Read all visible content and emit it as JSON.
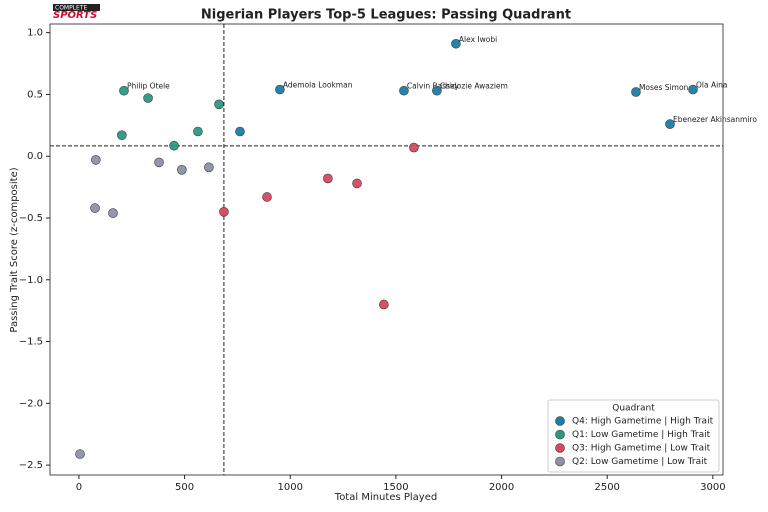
{
  "chart_data": {
    "type": "scatter",
    "title": "Nigerian Players Top-5 Leagues: Passing Quadrant",
    "logo_top": "COMPLETE",
    "logo": "SPORTS",
    "x_label": "Total Minutes Played",
    "y_label": "Passing Trait Score (z-composite)",
    "xlim": [
      -137,
      3048
    ],
    "ylim": [
      -2.58,
      1.07
    ],
    "xticks": [
      0,
      500,
      1000,
      1500,
      2000,
      2500,
      3000
    ],
    "yticks": [
      {
        "value": 1,
        "label": "1.0"
      },
      0.5,
      {
        "value": 0,
        "label": "0.0"
      },
      {
        "value": -0.5,
        "label": "−0.5"
      },
      {
        "value": -1,
        "label": "−1.0"
      },
      {
        "value": -1.5,
        "label": "−1.5"
      },
      {
        "value": -2,
        "label": "−2.0"
      },
      {
        "value": -2.5,
        "label": "−2.5"
      }
    ],
    "vline": 686,
    "hline": 0.084,
    "legend_title": "Quadrant",
    "legend": "lower right",
    "grid": false,
    "series": [
      {
        "name": "Q4: High Gametime | High Trait",
        "color": "#1b7ea6",
        "x": [
          1784,
          951,
          1538,
          1694,
          2636,
          2906,
          2797,
          762
        ],
        "values": [
          0.91,
          0.54,
          0.53,
          0.53,
          0.52,
          0.54,
          0.26,
          0.2
        ],
        "labels": [
          "Alex Iwobi",
          "Ademola Lookman",
          "Calvin Bassey",
          "Chidozie Awaziem",
          "Moses Simon",
          "Ola Aina",
          "Ebenezer Akinsanmiro",
          null
        ]
      },
      {
        "name": "Q1: Low Gametime | High Trait",
        "color": "#2a9a82",
        "x": [
          213,
          327,
          663,
          203,
          563,
          450
        ],
        "values": [
          0.53,
          0.47,
          0.42,
          0.17,
          0.2,
          0.085
        ],
        "labels": [
          "Philip Otele",
          null,
          null,
          null,
          null,
          null
        ]
      },
      {
        "name": "Q3: High Gametime | Low Trait",
        "color": "#d9475f",
        "x": [
          1585,
          1178,
          1316,
          890,
          686,
          1443
        ],
        "values": [
          0.07,
          -0.18,
          -0.22,
          -0.33,
          -0.45,
          -1.2
        ],
        "labels": [
          null,
          null,
          null,
          null,
          null,
          null
        ]
      },
      {
        "name": "Q2: Low Gametime | Low Trait",
        "color": "#8c93a8",
        "x": [
          80,
          379,
          487,
          615,
          76,
          161,
          5
        ],
        "values": [
          -0.03,
          -0.05,
          -0.11,
          -0.09,
          -0.42,
          -0.46,
          -2.41
        ],
        "labels": [
          null,
          null,
          null,
          null,
          null,
          null,
          null
        ]
      }
    ]
  }
}
